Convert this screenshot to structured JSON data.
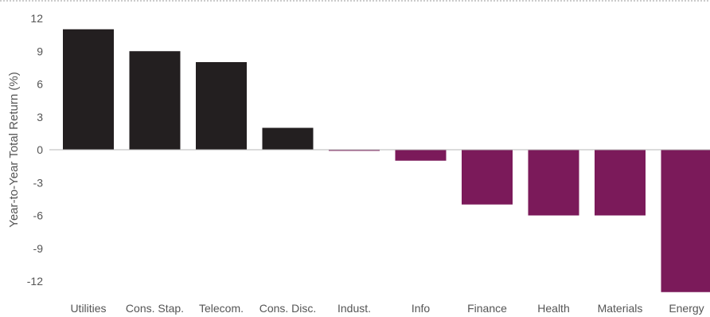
{
  "chart_data": {
    "type": "bar",
    "title": "",
    "xlabel": "",
    "ylabel": "Year-to-Year Total Return (%)",
    "categories": [
      "Utilities",
      "Cons. Stap.",
      "Telecom.",
      "Cons. Disc.",
      "Indust.",
      "Info",
      "Finance",
      "Health",
      "Materials",
      "Energy"
    ],
    "values": [
      11,
      9,
      8,
      2,
      -0.1,
      -1,
      -5,
      -6,
      -6,
      -13
    ],
    "ylim": [
      -13,
      12
    ],
    "yticks": [
      12,
      9,
      6,
      3,
      0,
      -3,
      -6,
      -9,
      -12
    ],
    "grid": false,
    "legend": "none",
    "colors": {
      "positive": "#231f20",
      "negative": "#7b1a5a",
      "zero_line": "#b7b7b7",
      "top_border": "#9a9a9a",
      "text": "#555555"
    }
  }
}
